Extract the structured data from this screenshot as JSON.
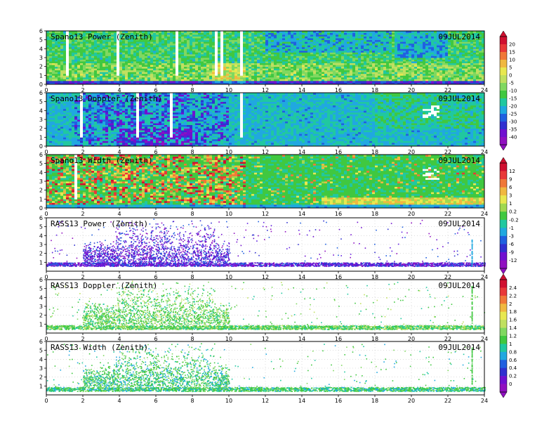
{
  "figure": {
    "date_label": "09JUL2014"
  },
  "chart_data": [
    {
      "type": "heatmap",
      "title": "Spano13 Power (Zenith)",
      "date": "09JUL2014",
      "x": {
        "ticks": [
          "0",
          "2",
          "4",
          "6",
          "8",
          "10",
          "12",
          "14",
          "16",
          "18",
          "20",
          "22",
          "24"
        ],
        "range": [
          0,
          24
        ]
      },
      "y": {
        "ticks": [
          "0",
          "1",
          "2",
          "3",
          "4",
          "5",
          "6"
        ],
        "range": [
          0,
          6
        ]
      },
      "colorbar": 0,
      "regime": "power"
    },
    {
      "type": "heatmap",
      "title": "Spano13 Doppler (Zenith)",
      "date": "09JUL2014",
      "x": {
        "ticks": [
          "0",
          "2",
          "4",
          "6",
          "8",
          "10",
          "12",
          "14",
          "16",
          "18",
          "20",
          "22",
          "24"
        ],
        "range": [
          0,
          24
        ]
      },
      "y": {
        "ticks": [
          "0",
          "1",
          "2",
          "3",
          "4",
          "5",
          "6"
        ],
        "range": [
          0,
          6
        ]
      },
      "colorbar": 0,
      "regime": "doppler"
    },
    {
      "type": "heatmap",
      "title": "Spano13 Width (Zenith)",
      "date": "09JUL2014",
      "x": {
        "ticks": [
          "0",
          "2",
          "4",
          "6",
          "8",
          "10",
          "12",
          "14",
          "16",
          "18",
          "20",
          "22",
          "24"
        ],
        "range": [
          0,
          24
        ]
      },
      "y": {
        "ticks": [
          "0",
          "1",
          "2",
          "3",
          "4",
          "5",
          "6"
        ],
        "range": [
          0,
          6
        ]
      },
      "colorbar": 1,
      "regime": "width"
    },
    {
      "type": "scatter",
      "title": "RASS13 Power (Zenith)",
      "date": "09JUL2014",
      "x": {
        "ticks": [
          "0",
          "2",
          "4",
          "6",
          "8",
          "10",
          "12",
          "14",
          "16",
          "18",
          "20",
          "22",
          "24"
        ],
        "range": [
          0,
          24
        ]
      },
      "y": {
        "ticks": [
          "1",
          "2",
          "3",
          "4",
          "5",
          "6"
        ],
        "range": [
          0,
          6
        ]
      },
      "colorbar": 1,
      "regime": "rass-power"
    },
    {
      "type": "scatter",
      "title": "RASS13 Doppler (Zenith)",
      "date": "09JUL2014",
      "x": {
        "ticks": [
          "0",
          "2",
          "4",
          "6",
          "8",
          "10",
          "12",
          "14",
          "16",
          "18",
          "20",
          "22",
          "24"
        ],
        "range": [
          0,
          24
        ]
      },
      "y": {
        "ticks": [
          "1",
          "2",
          "3",
          "4",
          "5",
          "6"
        ],
        "range": [
          0,
          6
        ]
      },
      "colorbar": 2,
      "regime": "rass-doppler"
    },
    {
      "type": "scatter",
      "title": "RASS13 Width (Zenith)",
      "date": "09JUL2014",
      "x": {
        "ticks": [
          "0",
          "2",
          "4",
          "6",
          "8",
          "10",
          "12",
          "14",
          "16",
          "18",
          "20",
          "22",
          "24"
        ],
        "range": [
          0,
          24
        ]
      },
      "y": {
        "ticks": [
          "1",
          "2",
          "3",
          "4",
          "5",
          "6"
        ],
        "range": [
          0,
          6
        ]
      },
      "colorbar": 2,
      "regime": "rass-width"
    }
  ],
  "colorbars": [
    {
      "labels": [
        "20",
        "15",
        "10",
        "5",
        "0",
        "-5",
        "-10",
        "-15",
        "-20",
        "-25",
        "-30",
        "-35",
        "-40"
      ],
      "colors": [
        "#d01030",
        "#e83838",
        "#f07838",
        "#f0b840",
        "#e8e850",
        "#c0e060",
        "#80d860",
        "#40c840",
        "#20c8a0",
        "#20a8e0",
        "#2060e0",
        "#3030d0",
        "#7010d0",
        "#9010c0"
      ]
    },
    {
      "labels": [
        "12",
        "9",
        "6",
        "3",
        "1",
        "0.2",
        "-0.2",
        "-1",
        "-3",
        "-6",
        "-9",
        "-12"
      ],
      "colors": [
        "#d01030",
        "#e83838",
        "#f07838",
        "#f0b840",
        "#e8e850",
        "#a0d850",
        "#40c840",
        "#20c8a0",
        "#20a8e0",
        "#2060e0",
        "#3030d0",
        "#7010d0",
        "#9010c0"
      ]
    },
    {
      "labels": [
        "2.4",
        "2.2",
        "2",
        "1.8",
        "1.6",
        "1.4",
        "1.2",
        "1",
        "0.8",
        "0.6",
        "0.4",
        "0.2",
        "0"
      ],
      "colors": [
        "#d01030",
        "#e83838",
        "#f07838",
        "#f0b840",
        "#e8e850",
        "#c0e060",
        "#80d860",
        "#40c840",
        "#20c8a0",
        "#20a8e0",
        "#2060e0",
        "#3030d0",
        "#7010d0",
        "#9010c0"
      ]
    }
  ]
}
